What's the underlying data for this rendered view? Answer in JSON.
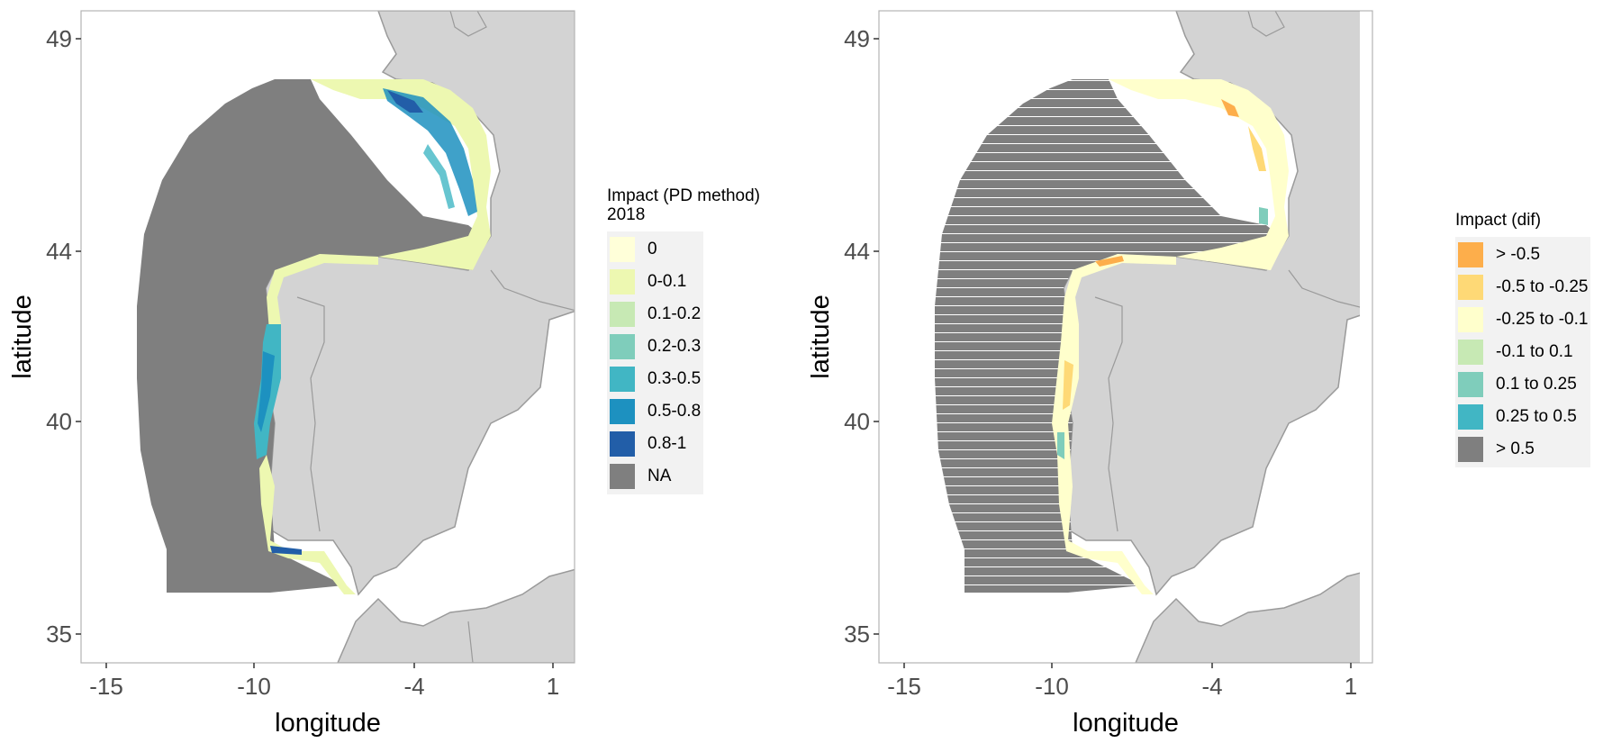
{
  "panel_left": {
    "xlabel": "longitude",
    "ylabel": "latitude",
    "x_ticks": [
      "-15",
      "-10",
      "-4",
      "1"
    ],
    "y_ticks": [
      "49",
      "44",
      "40",
      "35"
    ],
    "legend": {
      "title": "Impact (PD method)\n 2018",
      "items": [
        {
          "label": "0",
          "color": "#ffffd9"
        },
        {
          "label": "0-0.1",
          "color": "#edf8b1"
        },
        {
          "label": "0.1-0.2",
          "color": "#c7e9b4"
        },
        {
          "label": "0.2-0.3",
          "color": "#7fcdbb"
        },
        {
          "label": "0.3-0.5",
          "color": "#41b6c4"
        },
        {
          "label": "0.5-0.8",
          "color": "#1d91c0"
        },
        {
          "label": "0.8-1",
          "color": "#225ea8"
        },
        {
          "label": "NA",
          "color": "#7f7f7f"
        }
      ]
    }
  },
  "panel_right": {
    "xlabel": "longitude",
    "ylabel": "latitude",
    "x_ticks": [
      "-15",
      "-10",
      "-4",
      "1"
    ],
    "y_ticks": [
      "49",
      "44",
      "40",
      "35"
    ],
    "legend": {
      "title": "Impact (dif)",
      "items": [
        {
          "label": "> -0.5",
          "color": "#fdae4b"
        },
        {
          "label": "-0.5 to -0.25",
          "color": "#fed976"
        },
        {
          "label": "-0.25 to -0.1",
          "color": "#ffffcc"
        },
        {
          "label": "-0.1 to 0.1",
          "color": "#c7e9b4"
        },
        {
          "label": "0.1 to 0.25",
          "color": "#7fcdbb"
        },
        {
          "label": "0.25 to 0.5",
          "color": "#41b6c4"
        },
        {
          "label": "> 0.5",
          "color": "#7f7f7f"
        }
      ]
    }
  },
  "colors": {
    "land": "#d3d3d3",
    "land_border": "#9a9a9a",
    "na_grey": "#7f7f7f",
    "panel_border": "#333333"
  }
}
